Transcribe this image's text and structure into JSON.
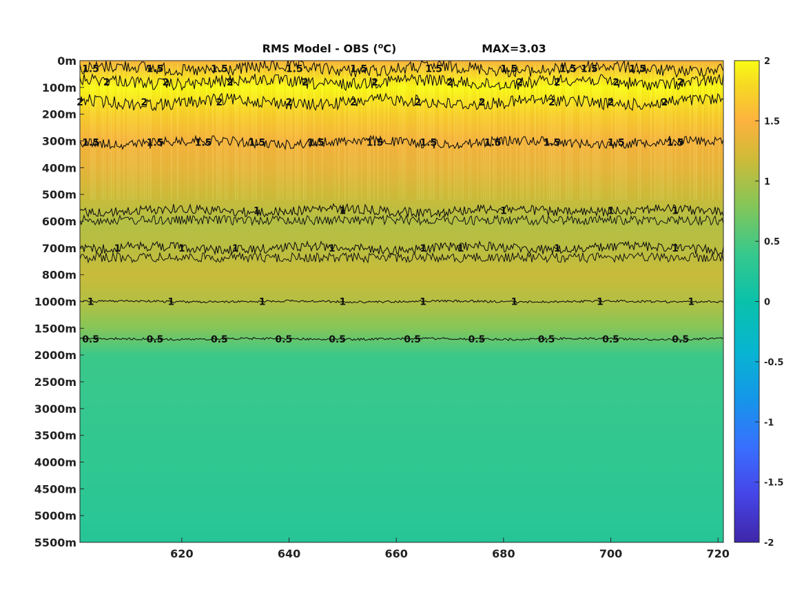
{
  "chart_data": {
    "type": "heatmap",
    "title_main": "RMS Model - OBS (",
    "title_sup": "o",
    "title_unit": "C)",
    "title_max": "MAX=3.03",
    "xlabel": "",
    "ylabel": "",
    "xlim": [
      601,
      721
    ],
    "x_ticks": [
      620,
      640,
      660,
      680,
      700,
      720
    ],
    "y_ticks": [
      "0m",
      "100m",
      "200m",
      "300m",
      "400m",
      "500m",
      "600m",
      "700m",
      "800m",
      "1000m",
      "1500m",
      "2000m",
      "2500m",
      "3000m",
      "3500m",
      "4000m",
      "4500m",
      "5000m",
      "5500m"
    ],
    "colorbar": {
      "clim": [
        -2,
        2
      ],
      "ticks": [
        2,
        1.5,
        1,
        0.5,
        0,
        -0.5,
        -1,
        -1.5,
        -2
      ],
      "colormap": "parula"
    },
    "depth_profile": [
      {
        "depth": "0m",
        "value": 1.45
      },
      {
        "depth": "100m",
        "value": 2.0
      },
      {
        "depth": "200m",
        "value": 1.72
      },
      {
        "depth": "300m",
        "value": 1.45
      },
      {
        "depth": "400m",
        "value": 1.35
      },
      {
        "depth": "500m",
        "value": 1.18
      },
      {
        "depth": "600m",
        "value": 1.04
      },
      {
        "depth": "700m",
        "value": 1.08
      },
      {
        "depth": "800m",
        "value": 1.16
      },
      {
        "depth": "1000m",
        "value": 1.05
      },
      {
        "depth": "1500m",
        "value": 0.8
      },
      {
        "depth": "2000m",
        "value": 0.42
      },
      {
        "depth": "2500m",
        "value": 0.4
      },
      {
        "depth": "3000m",
        "value": 0.38
      },
      {
        "depth": "3500m",
        "value": 0.36
      },
      {
        "depth": "4000m",
        "value": 0.34
      },
      {
        "depth": "4500m",
        "value": 0.31
      },
      {
        "depth": "5000m",
        "value": 0.28
      },
      {
        "depth": "5500m",
        "value": 0.25
      }
    ],
    "contours": [
      {
        "level": "1.5",
        "depth_index": 0.3,
        "labels_x": [
          603,
          615,
          627,
          641,
          653,
          667,
          681,
          692,
          696,
          705
        ]
      },
      {
        "level": "2",
        "depth_index": 0.8,
        "labels_x": [
          606,
          617,
          629,
          643,
          656,
          670,
          683,
          690,
          701,
          713
        ]
      },
      {
        "level": "2",
        "depth_index": 1.55,
        "labels_x": [
          601,
          613,
          627,
          640,
          652,
          664,
          676,
          689,
          700,
          710
        ]
      },
      {
        "level": "1.5",
        "depth_index": 3.05,
        "labels_x": [
          603,
          615,
          624,
          634,
          645,
          656,
          666,
          678,
          689,
          701,
          712
        ]
      },
      {
        "level": "1",
        "depth_index": 5.6,
        "labels_x": [
          634,
          650,
          680,
          700,
          712
        ]
      },
      {
        "level": "1",
        "depth_index": 7.0,
        "labels_x": [
          608,
          620,
          630,
          648,
          665,
          672,
          690,
          712
        ]
      },
      {
        "level": "1",
        "depth_index": 9.0,
        "labels_x": [
          603,
          618,
          635,
          650,
          665,
          682,
          698,
          715
        ]
      },
      {
        "level": "0.5",
        "depth_index": 10.4,
        "labels_x": [
          603,
          615,
          627,
          639,
          649,
          663,
          675,
          688,
          700,
          713
        ]
      }
    ]
  }
}
